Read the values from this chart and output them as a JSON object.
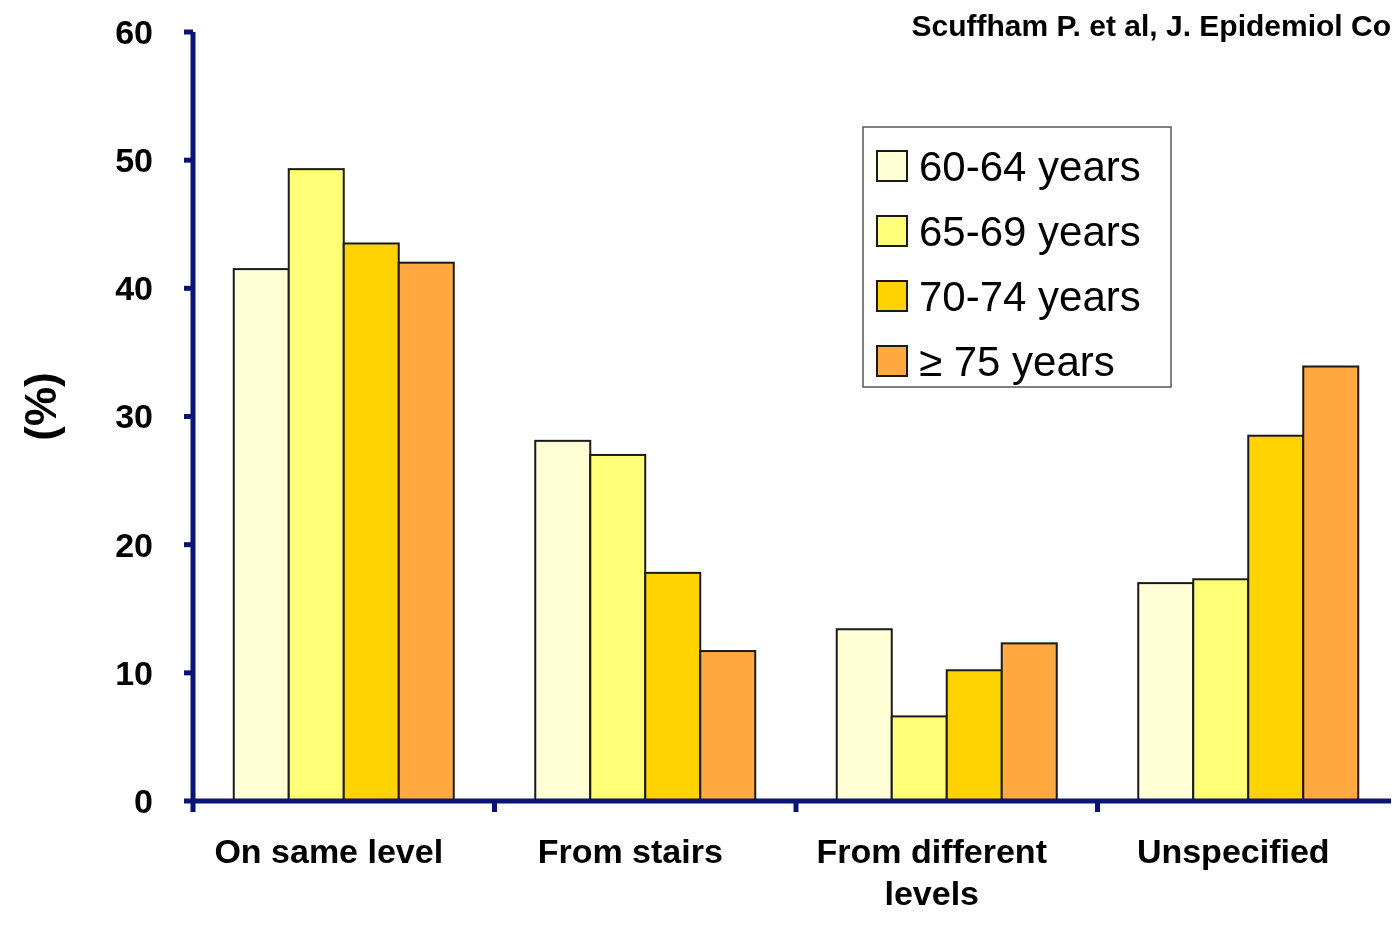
{
  "chart_data": {
    "type": "bar",
    "ylabel": "(%)",
    "categories": [
      "On same level",
      "From stairs",
      "From different levels",
      "Unspecified"
    ],
    "series": [
      {
        "name": "60-64 years",
        "color": "#ffffd5",
        "values": [
          41.5,
          28.1,
          13.4,
          17.0
        ]
      },
      {
        "name": "65-69 years",
        "color": "#ffff77",
        "values": [
          49.3,
          27.0,
          6.6,
          17.3
        ]
      },
      {
        "name": "70-74 years",
        "color": "#ffd200",
        "values": [
          43.5,
          17.8,
          10.2,
          28.5
        ]
      },
      {
        "name": "≥ 75 years",
        "color": "#ffa940",
        "values": [
          42.0,
          11.7,
          12.3,
          33.9
        ]
      }
    ],
    "ylim": [
      0,
      60
    ],
    "yticks": [
      0,
      10,
      20,
      30,
      40,
      50,
      60
    ],
    "grid": false,
    "legend": "top right",
    "annotations": [
      "Scuffham P. et al, J. Epidemiol Co"
    ]
  }
}
